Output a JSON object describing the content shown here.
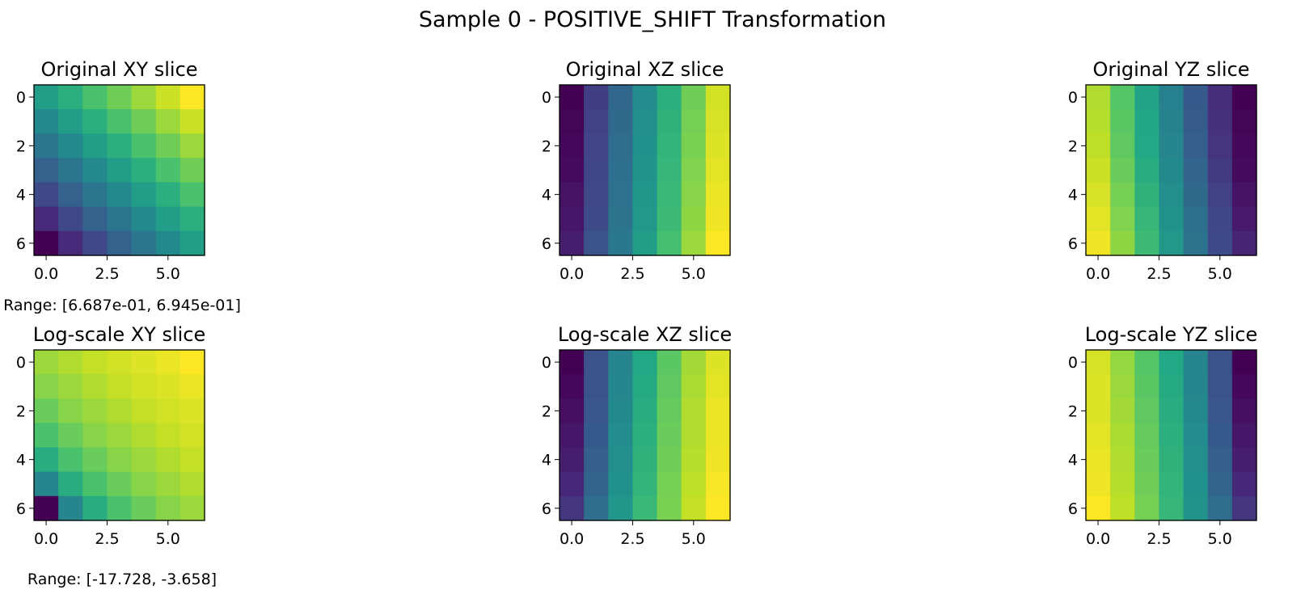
{
  "figure": {
    "title": "Sample 0 - POSITIVE_SHIFT Transformation"
  },
  "chart_data": [
    {
      "type": "heatmap",
      "title": "Original XY slice",
      "x_ticks": [
        "0.0",
        "2.5",
        "5.0"
      ],
      "y_ticks": [
        "0",
        "2",
        "4",
        "6"
      ],
      "range_label": "Range: [6.687e-01, 6.945e-01]",
      "colormap": "viridis",
      "grid": false,
      "values": [
        [
          0.55,
          0.63,
          0.71,
          0.78,
          0.85,
          0.92,
          1.0
        ],
        [
          0.47,
          0.55,
          0.63,
          0.71,
          0.78,
          0.85,
          0.92
        ],
        [
          0.39,
          0.47,
          0.55,
          0.63,
          0.71,
          0.78,
          0.85
        ],
        [
          0.31,
          0.39,
          0.47,
          0.55,
          0.63,
          0.71,
          0.78
        ],
        [
          0.22,
          0.31,
          0.39,
          0.47,
          0.55,
          0.63,
          0.71
        ],
        [
          0.12,
          0.22,
          0.31,
          0.39,
          0.47,
          0.55,
          0.63
        ],
        [
          0.0,
          0.12,
          0.22,
          0.31,
          0.39,
          0.47,
          0.55
        ]
      ]
    },
    {
      "type": "heatmap",
      "title": "Original XZ slice",
      "x_ticks": [
        "0.0",
        "2.5",
        "5.0"
      ],
      "y_ticks": [
        "0",
        "2",
        "4",
        "6"
      ],
      "range_label": "",
      "colormap": "viridis",
      "grid": false,
      "values": [
        [
          0.0,
          0.18,
          0.33,
          0.48,
          0.63,
          0.78,
          0.93
        ],
        [
          0.01,
          0.19,
          0.34,
          0.49,
          0.64,
          0.79,
          0.94
        ],
        [
          0.02,
          0.2,
          0.35,
          0.5,
          0.65,
          0.8,
          0.95
        ],
        [
          0.03,
          0.21,
          0.36,
          0.51,
          0.66,
          0.81,
          0.96
        ],
        [
          0.05,
          0.22,
          0.37,
          0.52,
          0.67,
          0.82,
          0.97
        ],
        [
          0.06,
          0.23,
          0.38,
          0.53,
          0.68,
          0.83,
          0.98
        ],
        [
          0.08,
          0.25,
          0.4,
          0.55,
          0.7,
          0.85,
          1.0
        ]
      ]
    },
    {
      "type": "heatmap",
      "title": "Original YZ slice",
      "x_ticks": [
        "0.0",
        "2.5",
        "5.0"
      ],
      "y_ticks": [
        "0",
        "2",
        "4",
        "6"
      ],
      "range_label": "",
      "colormap": "viridis",
      "grid": false,
      "values": [
        [
          0.88,
          0.73,
          0.58,
          0.43,
          0.28,
          0.13,
          0.0
        ],
        [
          0.89,
          0.74,
          0.59,
          0.44,
          0.29,
          0.14,
          0.01
        ],
        [
          0.9,
          0.75,
          0.6,
          0.45,
          0.3,
          0.15,
          0.02
        ],
        [
          0.92,
          0.77,
          0.62,
          0.47,
          0.32,
          0.17,
          0.03
        ],
        [
          0.94,
          0.79,
          0.64,
          0.49,
          0.34,
          0.19,
          0.05
        ],
        [
          0.96,
          0.81,
          0.66,
          0.51,
          0.36,
          0.21,
          0.07
        ],
        [
          0.98,
          0.83,
          0.68,
          0.53,
          0.38,
          0.23,
          0.1
        ]
      ]
    },
    {
      "type": "heatmap",
      "title": "Log-scale XY slice",
      "x_ticks": [
        "0.0",
        "2.5",
        "5.0"
      ],
      "y_ticks": [
        "0",
        "2",
        "4",
        "6"
      ],
      "range_label": "Range: [-17.728, -3.658]",
      "colormap": "viridis",
      "grid": false,
      "values": [
        [
          0.85,
          0.88,
          0.91,
          0.93,
          0.95,
          0.97,
          1.0
        ],
        [
          0.82,
          0.85,
          0.88,
          0.91,
          0.93,
          0.95,
          0.97
        ],
        [
          0.77,
          0.82,
          0.85,
          0.88,
          0.91,
          0.93,
          0.95
        ],
        [
          0.71,
          0.77,
          0.82,
          0.85,
          0.88,
          0.91,
          0.93
        ],
        [
          0.62,
          0.71,
          0.77,
          0.82,
          0.85,
          0.88,
          0.91
        ],
        [
          0.45,
          0.62,
          0.71,
          0.77,
          0.82,
          0.85,
          0.88
        ],
        [
          0.0,
          0.45,
          0.62,
          0.71,
          0.77,
          0.82,
          0.85
        ]
      ]
    },
    {
      "type": "heatmap",
      "title": "Log-scale XZ slice",
      "x_ticks": [
        "0.0",
        "2.5",
        "5.0"
      ],
      "y_ticks": [
        "0",
        "2",
        "4",
        "6"
      ],
      "range_label": "",
      "colormap": "viridis",
      "grid": false,
      "values": [
        [
          0.0,
          0.25,
          0.45,
          0.6,
          0.74,
          0.86,
          0.95
        ],
        [
          0.02,
          0.26,
          0.46,
          0.61,
          0.75,
          0.87,
          0.96
        ],
        [
          0.04,
          0.27,
          0.47,
          0.62,
          0.76,
          0.88,
          0.97
        ],
        [
          0.06,
          0.28,
          0.48,
          0.63,
          0.77,
          0.88,
          0.97
        ],
        [
          0.08,
          0.3,
          0.49,
          0.64,
          0.78,
          0.89,
          0.98
        ],
        [
          0.11,
          0.32,
          0.5,
          0.65,
          0.79,
          0.9,
          0.99
        ],
        [
          0.15,
          0.35,
          0.52,
          0.67,
          0.8,
          0.91,
          1.0
        ]
      ]
    },
    {
      "type": "heatmap",
      "title": "Log-scale YZ slice",
      "x_ticks": [
        "0.0",
        "2.5",
        "5.0"
      ],
      "y_ticks": [
        "0",
        "2",
        "4",
        "6"
      ],
      "range_label": "",
      "colormap": "viridis",
      "grid": false,
      "values": [
        [
          0.94,
          0.84,
          0.73,
          0.6,
          0.45,
          0.25,
          0.0
        ],
        [
          0.95,
          0.85,
          0.74,
          0.61,
          0.46,
          0.26,
          0.02
        ],
        [
          0.95,
          0.86,
          0.75,
          0.62,
          0.47,
          0.27,
          0.04
        ],
        [
          0.96,
          0.87,
          0.76,
          0.63,
          0.48,
          0.28,
          0.06
        ],
        [
          0.97,
          0.88,
          0.77,
          0.64,
          0.49,
          0.3,
          0.08
        ],
        [
          0.98,
          0.89,
          0.78,
          0.65,
          0.5,
          0.32,
          0.11
        ],
        [
          1.0,
          0.9,
          0.79,
          0.66,
          0.51,
          0.35,
          0.15
        ]
      ]
    }
  ]
}
